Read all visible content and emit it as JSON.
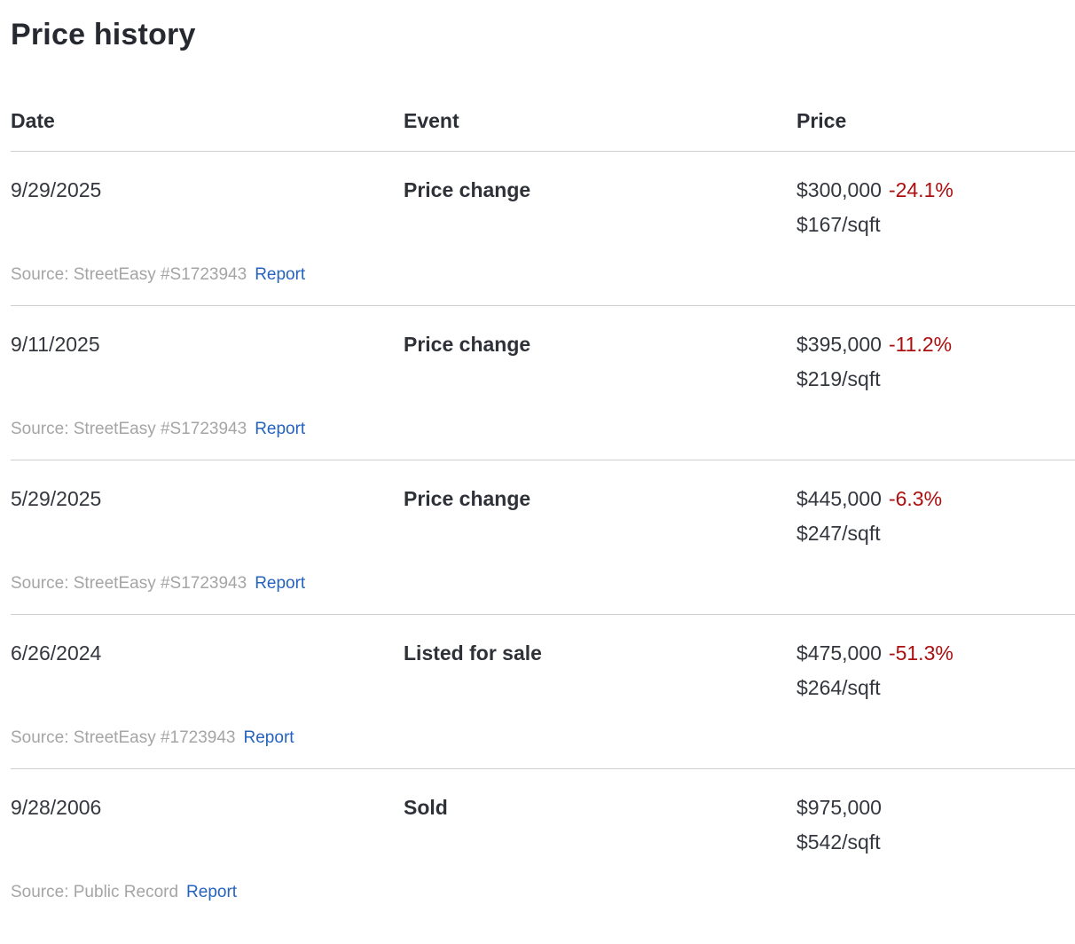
{
  "page": {
    "title": "Price history"
  },
  "table": {
    "headers": {
      "date": "Date",
      "event": "Event",
      "price": "Price"
    },
    "rows": [
      {
        "date": "9/29/2025",
        "event": "Price change",
        "price": "$300,000",
        "change": "-24.1%",
        "per_sqft": "$167/sqft",
        "source": "Source: StreetEasy #S1723943",
        "report_label": "Report"
      },
      {
        "date": "9/11/2025",
        "event": "Price change",
        "price": "$395,000",
        "change": "-11.2%",
        "per_sqft": "$219/sqft",
        "source": "Source: StreetEasy #S1723943",
        "report_label": "Report"
      },
      {
        "date": "5/29/2025",
        "event": "Price change",
        "price": "$445,000",
        "change": "-6.3%",
        "per_sqft": "$247/sqft",
        "source": "Source: StreetEasy #S1723943",
        "report_label": "Report"
      },
      {
        "date": "6/26/2024",
        "event": "Listed for sale",
        "price": "$475,000",
        "change": "-51.3%",
        "per_sqft": "$264/sqft",
        "source": "Source: StreetEasy #1723943",
        "report_label": "Report"
      },
      {
        "date": "9/28/2006",
        "event": "Sold",
        "price": "$975,000",
        "change": "",
        "per_sqft": "$542/sqft",
        "source": "Source: Public Record",
        "report_label": "Report"
      }
    ],
    "colors": {
      "negative_change": "#ad0e0e",
      "link": "#2563bf",
      "source_text": "#a5a5a5",
      "divider": "#cfcfcf",
      "text": "#2c2f36"
    }
  }
}
